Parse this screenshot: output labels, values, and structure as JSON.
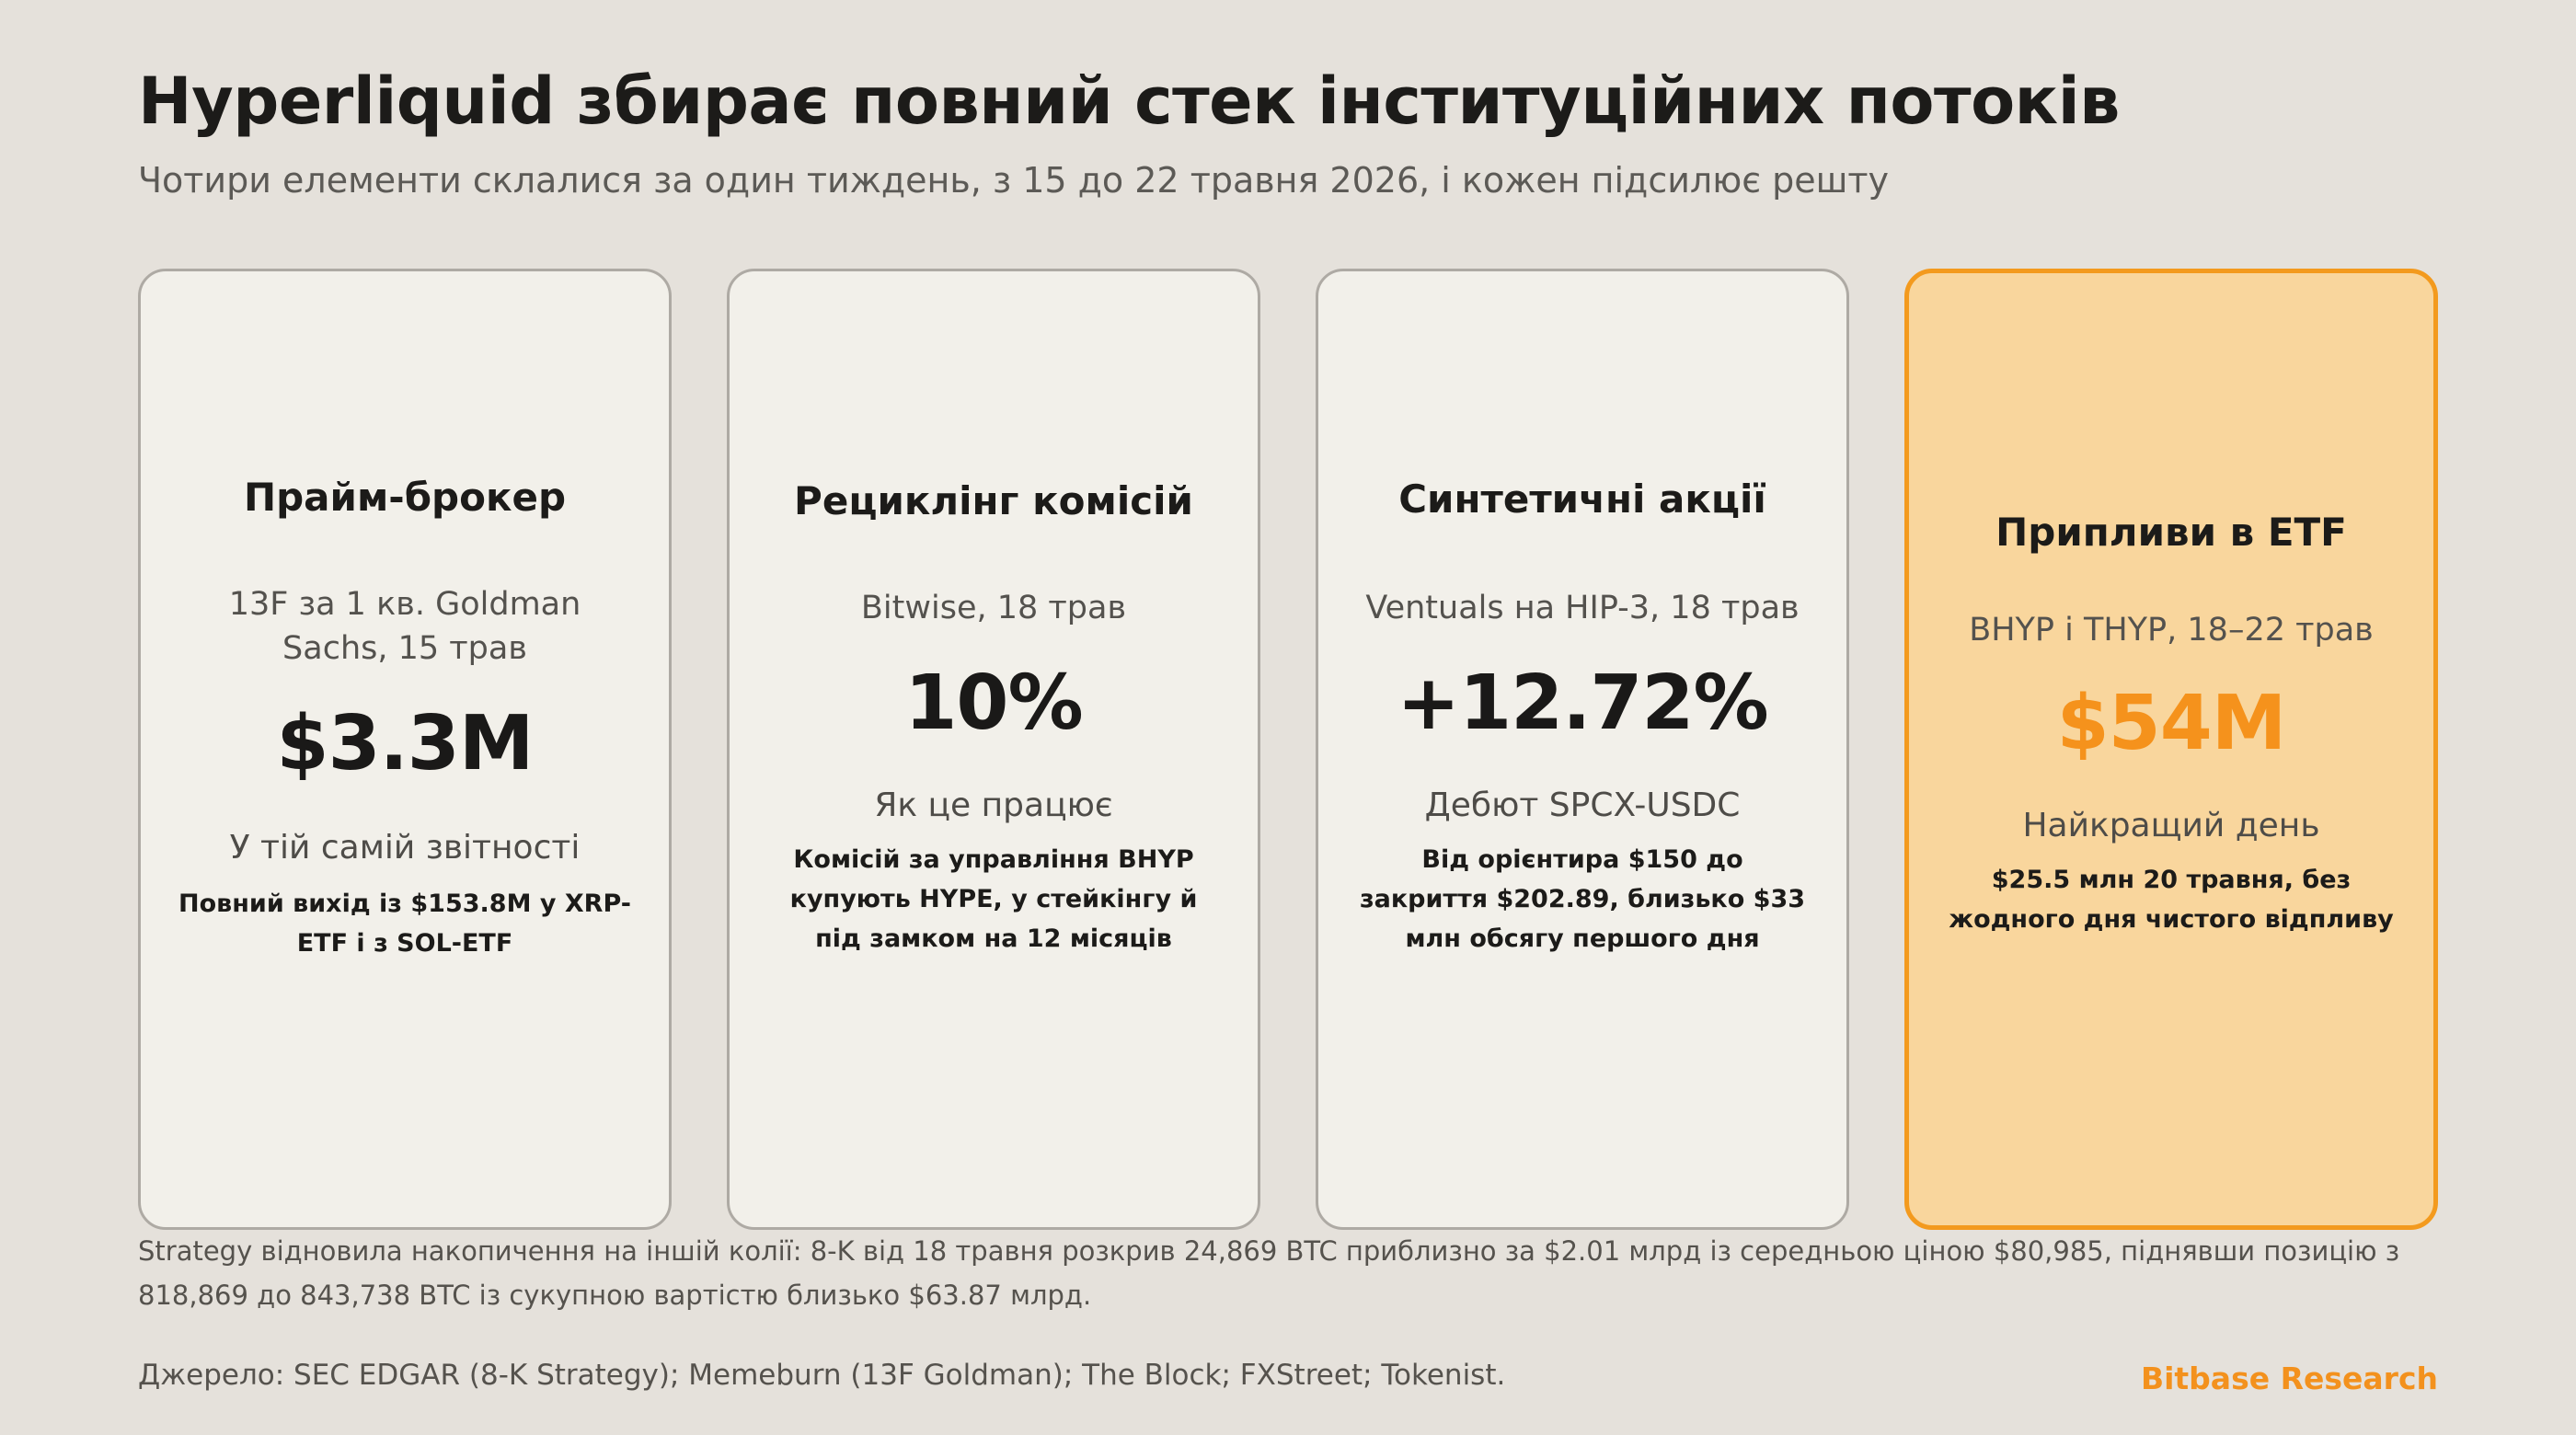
{
  "header": {
    "title": "Hyperliquid збирає повний стек інституційних потоків",
    "subtitle": "Чотири елементи склалися за один тиждень, з 15 до 22 травня 2026, і кожен підсилює решту"
  },
  "cards": [
    {
      "title": "Прайм-брокер",
      "meta": "13F за 1 кв. Goldman Sachs, 15 трав",
      "value": "$3.3M",
      "label": "У тій самій звітності",
      "description": "Повний вихід із $153.8M у XRP-ETF і з SOL-ETF"
    },
    {
      "title": "Рециклінг комісій",
      "meta": "Bitwise, 18 трав",
      "value": "10%",
      "label": "Як це працює",
      "description": "Комісій за управління BHYP купують HYPE, у стейкінгу й під замком на 12 місяців"
    },
    {
      "title": "Синтетичні акції",
      "meta": "Ventuals на HIP-3, 18 трав",
      "value": "+12.72%",
      "label": "Дебют SPCX-USDC",
      "description": "Від орієнтира $150 до закриття $202.89, близько $33 млн обсягу першого дня"
    },
    {
      "title": "Припливи в ETF",
      "meta": "BHYP і THYP, 18–22 трав",
      "value": "$54M",
      "label": "Найкращий день",
      "description": "$25.5 млн 20 травня, без жодного дня чистого відпливу"
    }
  ],
  "footer": {
    "note": "Strategy відновила накопичення на іншій колії: 8-K від 18 травня розкрив 24,869 BTC приблизно за $2.01 млрд із середньою ціною $80,985, піднявши позицію з 818,869 до 843,738 BTC із сукупною вартістю близько $63.87 млрд.",
    "source": "Джерело: SEC EDGAR (8-K Strategy); Memeburn (13F Goldman); The Block; FXStreet; Tokenist.",
    "brand": "Bitbase Research"
  },
  "colors": {
    "background": "#e5e1db",
    "card": "#f2f0ea",
    "highlight_card": "#f9d69d",
    "accent": "#f5921c"
  }
}
